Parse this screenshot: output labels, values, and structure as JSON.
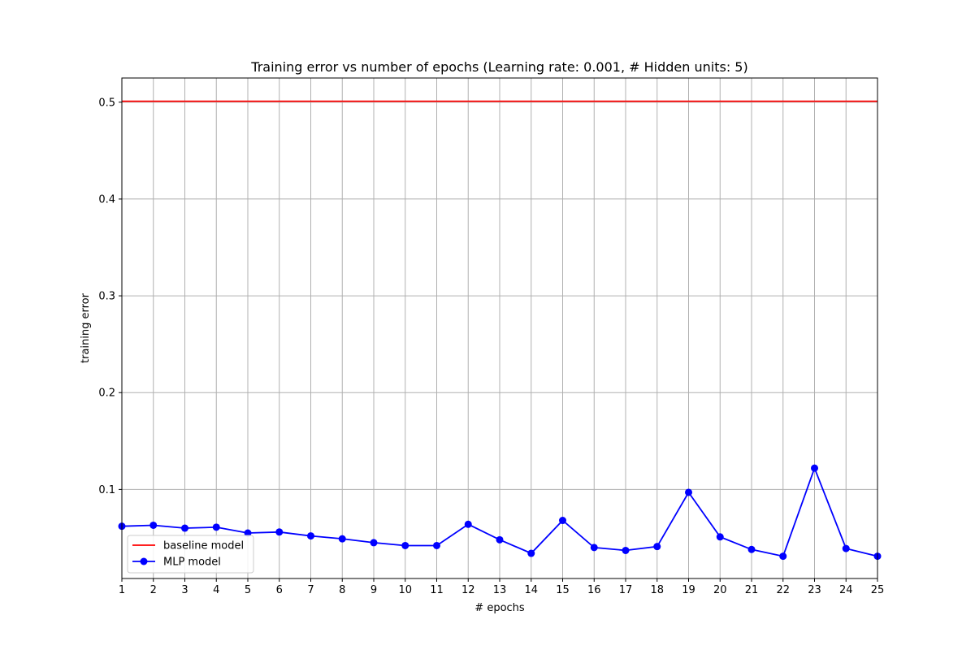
{
  "chart_data": {
    "type": "line",
    "title": "Training error vs number of epochs (Learning rate: 0.001, # Hidden units: 5)",
    "xlabel": "# epochs",
    "ylabel": "training error",
    "xlim": [
      1,
      25
    ],
    "ylim": [
      0.008,
      0.525
    ],
    "x_ticks": [
      1,
      2,
      3,
      4,
      5,
      6,
      7,
      8,
      9,
      10,
      11,
      12,
      13,
      14,
      15,
      16,
      17,
      18,
      19,
      20,
      21,
      22,
      23,
      24,
      25
    ],
    "y_ticks": [
      0.1,
      0.2,
      0.3,
      0.4,
      0.5
    ],
    "y_tick_labels": [
      "0.1",
      "0.2",
      "0.3",
      "0.4",
      "0.5"
    ],
    "grid": true,
    "legend_position": "lower-left",
    "x": [
      1,
      2,
      3,
      4,
      5,
      6,
      7,
      8,
      9,
      10,
      11,
      12,
      13,
      14,
      15,
      16,
      17,
      18,
      19,
      20,
      21,
      22,
      23,
      24,
      25
    ],
    "series": [
      {
        "name": "baseline model",
        "color": "#ff0000",
        "marker": "none",
        "values": [
          0.501,
          0.501,
          0.501,
          0.501,
          0.501,
          0.501,
          0.501,
          0.501,
          0.501,
          0.501,
          0.501,
          0.501,
          0.501,
          0.501,
          0.501,
          0.501,
          0.501,
          0.501,
          0.501,
          0.501,
          0.501,
          0.501,
          0.501,
          0.501,
          0.501
        ]
      },
      {
        "name": "MLP model",
        "color": "#0000ff",
        "marker": "circle",
        "values": [
          0.062,
          0.063,
          0.06,
          0.061,
          0.055,
          0.056,
          0.052,
          0.049,
          0.045,
          0.042,
          0.042,
          0.064,
          0.048,
          0.034,
          0.068,
          0.04,
          0.037,
          0.041,
          0.097,
          0.051,
          0.038,
          0.031,
          0.122,
          0.039,
          0.031
        ]
      }
    ]
  }
}
